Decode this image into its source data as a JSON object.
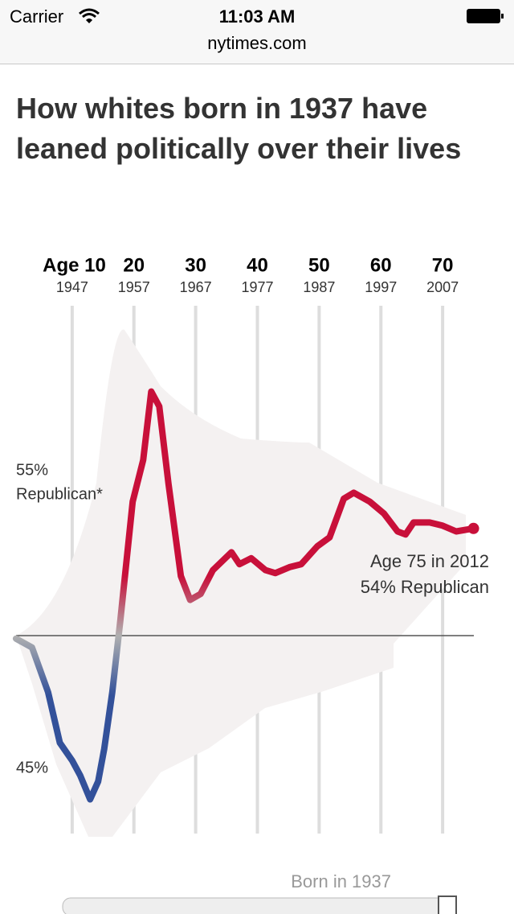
{
  "status_bar": {
    "carrier": "Carrier",
    "time": "11:03 AM",
    "url": "nytimes.com"
  },
  "chart_data": {
    "type": "line",
    "title": "How whites born in 1937 have leaned politically over their lives",
    "x": [
      0.9,
      3.5,
      6.1,
      8.0,
      10.0,
      11.3,
      12.9,
      14.2,
      15.2,
      16.5,
      17.8,
      19.8,
      21.5,
      22.8,
      24.1,
      25.6,
      27.6,
      29.1,
      30.8,
      32.8,
      35.8,
      37.1,
      39.0,
      41.3,
      42.9,
      45.2,
      47.1,
      48.4,
      49.7,
      51.7,
      54.0,
      55.6,
      58.2,
      60.5,
      62.7,
      64.0,
      65.3,
      67.9,
      69.9,
      72.2,
      75.0
    ],
    "values": [
      49.9,
      49.6,
      48.1,
      46.4,
      45.8,
      45.3,
      44.5,
      45.1,
      46.2,
      48.1,
      50.5,
      54.5,
      55.9,
      58.2,
      57.7,
      55.1,
      52.0,
      51.2,
      51.4,
      52.2,
      52.8,
      52.4,
      52.6,
      52.2,
      52.1,
      52.3,
      52.4,
      52.7,
      53.0,
      53.3,
      54.6,
      54.8,
      54.5,
      54.1,
      53.5,
      53.4,
      53.8,
      53.8,
      53.7,
      53.5,
      53.6
    ],
    "xlim": [
      0,
      80
    ],
    "ylim": [
      42,
      60
    ],
    "xticks": [
      {
        "value": 10,
        "label": "Age 10"
      },
      20,
      30,
      40,
      50,
      60,
      70
    ],
    "year_labels": [
      "1947",
      "1957",
      "1967",
      "1977",
      "1987",
      "1997",
      "2007"
    ],
    "yticks": [
      {
        "value": 55,
        "label": "55%"
      },
      {
        "value": 45,
        "label": "45%"
      }
    ],
    "y_note": "Republican*",
    "reference_line": 50,
    "color_high": "#c8103a",
    "color_mid": "#b0b0b0",
    "color_low": "#33519a",
    "annotations": [
      "Age 75 in 2012",
      "54% Republican"
    ],
    "grid": true
  },
  "slider": {
    "label": "Born in 1937"
  }
}
